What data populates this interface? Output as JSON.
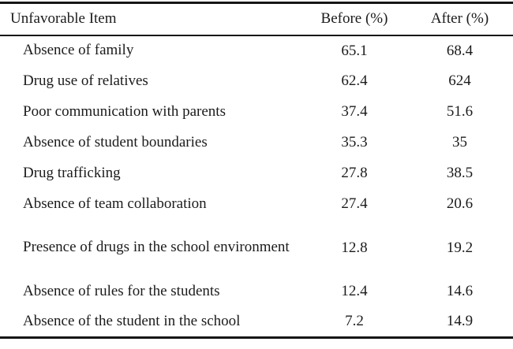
{
  "page": {
    "background": "#ffffff",
    "text_color": "#1b1b1b",
    "rule_color": "#161616"
  },
  "table": {
    "columns": [
      {
        "key": "item",
        "label": "Unfavorable Item",
        "align": "left"
      },
      {
        "key": "before",
        "label": "Before (%)",
        "align": "center"
      },
      {
        "key": "after",
        "label": "After (%)",
        "align": "center"
      }
    ],
    "rows": [
      {
        "item": "Absence of family",
        "before": "65.1",
        "after": "68.4"
      },
      {
        "item": "Drug use of relatives",
        "before": "62.4",
        "after": "624"
      },
      {
        "item": "Poor communication with parents",
        "before": "37.4",
        "after": "51.6"
      },
      {
        "item": "Absence of student boundaries",
        "before": "35.3",
        "after": "35"
      },
      {
        "item": "Drug trafficking",
        "before": "27.8",
        "after": "38.5"
      },
      {
        "item": "Absence of team collaboration",
        "before": "27.4",
        "after": "20.6"
      },
      {
        "item": "Presence of drugs in the school environment",
        "before": "12.8",
        "after": "19.2"
      },
      {
        "item": "Absence of rules for the students",
        "before": "12.4",
        "after": "14.6"
      },
      {
        "item": "Absence of the student in the school",
        "before": "7.2",
        "after": "14.9"
      }
    ]
  }
}
